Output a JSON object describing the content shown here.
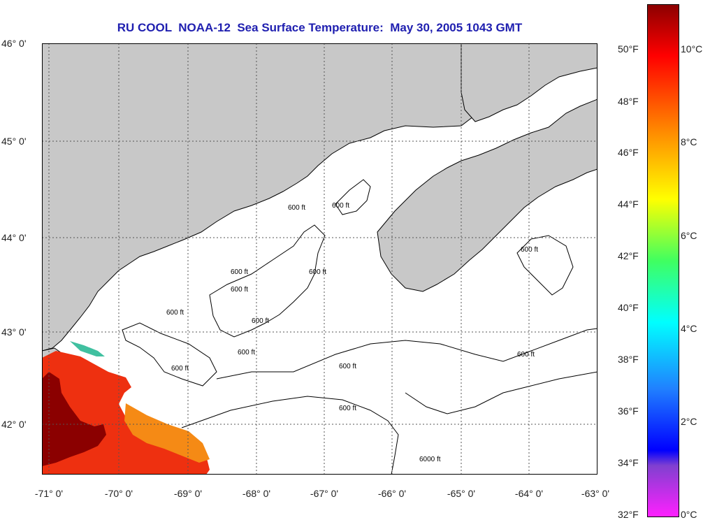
{
  "title": "RU COOL  NOAA-12  Sea Surface Temperature:  May 30, 2005 1043 GMT",
  "lat_labels": [
    "46° 0'",
    "45° 0'",
    "44° 0'",
    "43° 0'",
    "42° 0'"
  ],
  "lon_labels": [
    "-71° 0'",
    "-70° 0'",
    "-69° 0'",
    "-68° 0'",
    "-67° 0'",
    "-66° 0'",
    "-65° 0'",
    "-64° 0'",
    "-63° 0'"
  ],
  "contour_labels": [
    "600 ft",
    "600 ft",
    "600 ft",
    "600 ft",
    "600 ft",
    "600 ft",
    "600 ft",
    "600 ft",
    "600 ft",
    "600 ft",
    "600 ft",
    "600 ft",
    "600 ft",
    "6000 ft"
  ],
  "colorbar": {
    "fahrenheit_labels": [
      "50°F",
      "48°F",
      "46°F",
      "44°F",
      "42°F",
      "40°F",
      "38°F",
      "36°F",
      "34°F",
      "32°F"
    ],
    "celsius_labels": [
      "10°C",
      "8°C",
      "6°C",
      "4°C",
      "2°C",
      "0°C"
    ]
  },
  "colors": {
    "title": "#1f1fb0",
    "land": "#c8c8c8",
    "ocean": "#ffffff",
    "warm_water": "#ee3010",
    "cold_inshore": "#8b0000"
  }
}
